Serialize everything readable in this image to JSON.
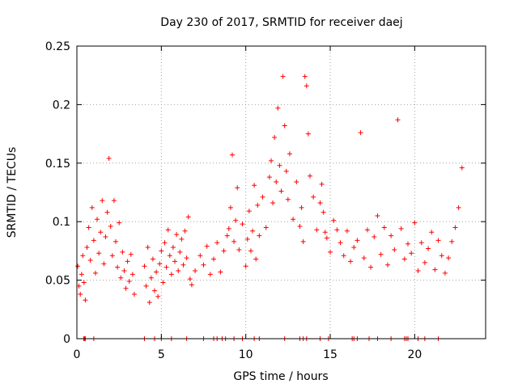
{
  "chart_data": {
    "type": "scatter",
    "title": "Day 230 of 2017, SRMTID for receiver daej",
    "xlabel": "GPS time / hours",
    "ylabel": "SRMTID / TECUs",
    "xlim": [
      0,
      24.2
    ],
    "ylim": [
      0,
      0.25
    ],
    "xticks": [
      0,
      5,
      10,
      15,
      20
    ],
    "xtick_labels": [
      "0",
      "5",
      "10",
      "15",
      "20"
    ],
    "yticks": [
      0,
      0.05,
      0.1,
      0.15,
      0.2,
      0.25
    ],
    "ytick_labels": [
      "0",
      "0.05",
      "0.1",
      "0.15",
      "0.2",
      "0.25"
    ],
    "grid": true,
    "marker": "+",
    "color": "#ff0000",
    "series": [
      {
        "name": "SRMTID",
        "x": [
          0.05,
          0.12,
          0.2,
          0.28,
          0.35,
          0.42,
          0.5,
          0.6,
          0.7,
          0.8,
          0.9,
          1.0,
          1.1,
          1.2,
          1.3,
          1.4,
          1.5,
          1.6,
          1.7,
          1.8,
          1.9,
          2.0,
          2.1,
          2.2,
          2.3,
          2.4,
          2.5,
          2.6,
          2.7,
          2.8,
          2.9,
          3.0,
          3.1,
          3.2,
          3.3,
          3.4,
          4.0,
          4.1,
          4.2,
          4.3,
          4.4,
          4.5,
          4.6,
          4.7,
          4.8,
          4.9,
          5.0,
          5.1,
          5.2,
          5.3,
          5.4,
          5.5,
          5.6,
          5.7,
          5.8,
          5.9,
          6.0,
          6.1,
          6.2,
          6.3,
          6.4,
          6.5,
          6.6,
          6.7,
          6.8,
          7.0,
          7.3,
          7.5,
          7.7,
          7.9,
          8.1,
          8.3,
          8.5,
          8.7,
          8.9,
          9.0,
          9.1,
          9.2,
          9.3,
          9.4,
          9.5,
          9.6,
          9.8,
          10.0,
          10.1,
          10.2,
          10.3,
          10.4,
          10.5,
          10.6,
          10.7,
          10.8,
          11.0,
          11.2,
          11.4,
          11.5,
          11.6,
          11.7,
          11.8,
          11.9,
          12.0,
          12.1,
          12.2,
          12.3,
          12.4,
          12.5,
          12.6,
          12.8,
          13.0,
          13.2,
          13.3,
          13.4,
          13.5,
          13.6,
          13.7,
          13.8,
          14.0,
          14.2,
          14.4,
          14.5,
          14.6,
          14.7,
          14.8,
          15.0,
          15.2,
          15.4,
          15.6,
          15.8,
          16.0,
          16.2,
          16.4,
          16.6,
          16.8,
          17.0,
          17.2,
          17.4,
          17.6,
          17.8,
          18.0,
          18.2,
          18.4,
          18.6,
          18.8,
          19.0,
          19.2,
          19.4,
          19.6,
          19.8,
          20.0,
          20.2,
          20.4,
          20.6,
          20.8,
          21.0,
          21.2,
          21.4,
          21.6,
          21.8,
          22.0,
          22.2,
          22.4,
          22.6,
          22.8
        ],
        "y": [
          0.062,
          0.045,
          0.038,
          0.055,
          0.071,
          0.048,
          0.033,
          0.078,
          0.095,
          0.067,
          0.112,
          0.084,
          0.056,
          0.102,
          0.073,
          0.091,
          0.118,
          0.064,
          0.087,
          0.108,
          0.154,
          0.096,
          0.071,
          0.118,
          0.083,
          0.061,
          0.099,
          0.052,
          0.074,
          0.058,
          0.043,
          0.066,
          0.049,
          0.072,
          0.055,
          0.038,
          0.062,
          0.045,
          0.078,
          0.031,
          0.052,
          0.068,
          0.041,
          0.057,
          0.036,
          0.064,
          0.075,
          0.048,
          0.082,
          0.061,
          0.093,
          0.071,
          0.055,
          0.078,
          0.066,
          0.089,
          0.058,
          0.074,
          0.085,
          0.063,
          0.092,
          0.069,
          0.104,
          0.051,
          0.046,
          0.058,
          0.071,
          0.063,
          0.079,
          0.055,
          0.068,
          0.082,
          0.057,
          0.075,
          0.088,
          0.094,
          0.112,
          0.157,
          0.083,
          0.101,
          0.129,
          0.076,
          0.098,
          0.062,
          0.085,
          0.109,
          0.075,
          0.092,
          0.131,
          0.068,
          0.114,
          0.088,
          0.121,
          0.095,
          0.138,
          0.152,
          0.116,
          0.172,
          0.134,
          0.197,
          0.148,
          0.126,
          0.224,
          0.182,
          0.143,
          0.119,
          0.158,
          0.102,
          0.134,
          0.096,
          0.112,
          0.083,
          0.224,
          0.216,
          0.175,
          0.139,
          0.121,
          0.093,
          0.116,
          0.132,
          0.108,
          0.091,
          0.086,
          0.074,
          0.101,
          0.093,
          0.082,
          0.071,
          0.092,
          0.066,
          0.078,
          0.084,
          0.176,
          0.069,
          0.093,
          0.061,
          0.087,
          0.105,
          0.072,
          0.095,
          0.063,
          0.088,
          0.076,
          0.187,
          0.094,
          0.068,
          0.081,
          0.073,
          0.099,
          0.058,
          0.082,
          0.065,
          0.077,
          0.091,
          0.059,
          0.084,
          0.071,
          0.056,
          0.069,
          0.083,
          0.095,
          0.112,
          0.146
        ]
      }
    ],
    "zero_line_x": [
      0.4,
      0.45,
      0.5,
      1.0,
      4.0,
      4.6,
      5.0,
      5.6,
      6.5,
      7.5,
      8.1,
      8.3,
      8.6,
      8.8,
      9.3,
      9.8,
      10.5,
      10.8,
      12.3,
      13.2,
      13.4,
      13.6,
      14.4,
      14.9,
      16.3,
      16.4,
      16.6,
      17.3,
      17.8,
      18.6,
      19.4,
      19.5,
      19.6,
      20.2,
      20.6,
      21.4
    ]
  }
}
